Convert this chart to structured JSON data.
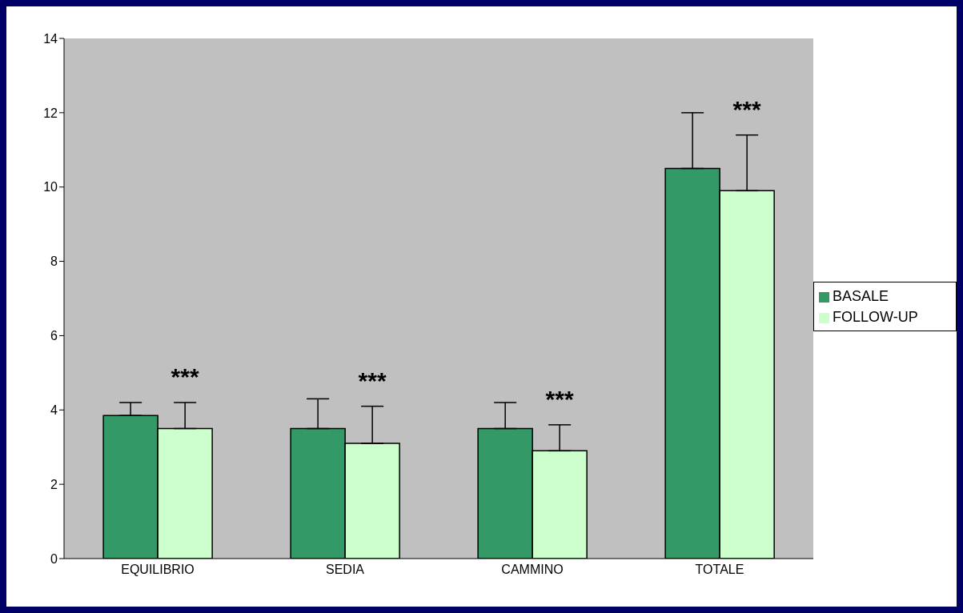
{
  "chart_data": {
    "type": "bar",
    "categories": [
      "EQUILIBRIO",
      "SEDIA",
      "CAMMINO",
      "TOTALE"
    ],
    "series": [
      {
        "name": "BASALE",
        "color": "#339966",
        "values": [
          3.85,
          3.5,
          3.5,
          10.5
        ],
        "errors": [
          [
            3.85,
            4.2
          ],
          [
            3.5,
            4.3
          ],
          [
            3.5,
            4.2
          ],
          [
            10.5,
            12.0
          ]
        ]
      },
      {
        "name": "FOLLOW-UP",
        "color": "#ccffcc",
        "values": [
          3.5,
          3.1,
          2.9,
          9.9
        ],
        "errors": [
          [
            3.5,
            4.2
          ],
          [
            3.1,
            4.1
          ],
          [
            2.9,
            3.6
          ],
          [
            9.9,
            11.4
          ]
        ]
      }
    ],
    "ylim": [
      0,
      14
    ],
    "yticks": [
      0,
      2,
      4,
      6,
      8,
      10,
      12,
      14
    ],
    "legend": "right",
    "annotations": [
      "***",
      "***",
      "***",
      "***"
    ]
  }
}
